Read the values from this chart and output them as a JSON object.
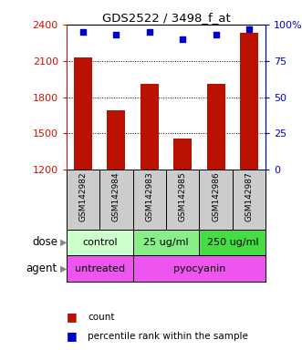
{
  "title": "GDS2522 / 3498_f_at",
  "samples": [
    "GSM142982",
    "GSM142984",
    "GSM142983",
    "GSM142985",
    "GSM142986",
    "GSM142987"
  ],
  "counts": [
    2125,
    1690,
    1910,
    1460,
    1910,
    2330
  ],
  "percentiles": [
    95,
    93,
    95,
    90,
    93,
    97
  ],
  "ylim_left": [
    1200,
    2400
  ],
  "ylim_right": [
    0,
    100
  ],
  "yticks_left": [
    1200,
    1500,
    1800,
    2100,
    2400
  ],
  "yticks_right": [
    0,
    25,
    50,
    75,
    100
  ],
  "bar_color": "#bb1100",
  "dot_color": "#0000cc",
  "grid_color": "#000000",
  "dose_groups": [
    {
      "label": "control",
      "samples": [
        0,
        1
      ],
      "color": "#ccffcc"
    },
    {
      "label": "25 ug/ml",
      "samples": [
        2,
        3
      ],
      "color": "#88ee88"
    },
    {
      "label": "250 ug/ml",
      "samples": [
        4,
        5
      ],
      "color": "#44dd44"
    }
  ],
  "agent_groups": [
    {
      "label": "untreated",
      "samples": [
        0,
        1
      ],
      "color": "#ee55ee"
    },
    {
      "label": "pyocyanin",
      "samples": [
        2,
        3,
        4,
        5
      ],
      "color": "#ee55ee"
    }
  ],
  "dose_label": "dose",
  "agent_label": "agent",
  "legend_count_label": "count",
  "legend_pct_label": "percentile rank within the sample",
  "bar_width": 0.55,
  "background_color": "#ffffff",
  "sample_label_bg": "#cccccc",
  "left_axis_color": "#cc1100",
  "right_axis_color": "#0000cc"
}
